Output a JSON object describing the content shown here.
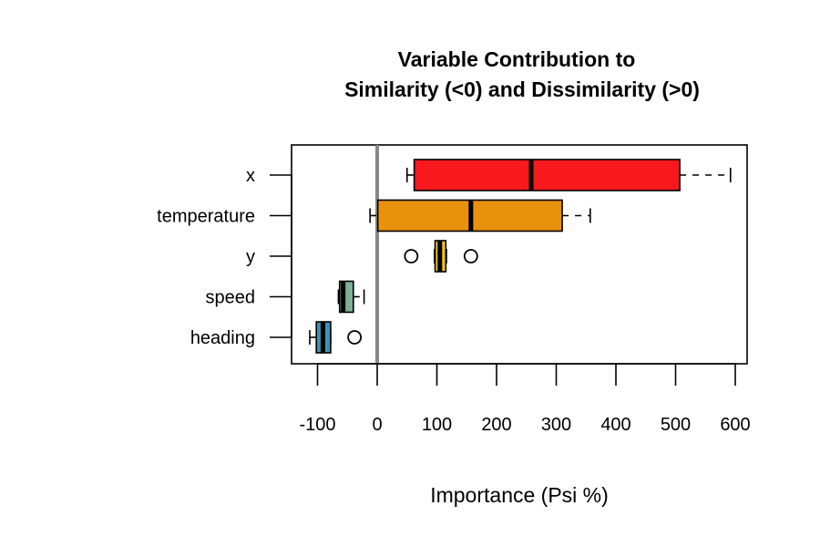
{
  "chart_data": {
    "type": "boxplot",
    "orientation": "horizontal",
    "title_line1": "Variable Contribution to",
    "title_line2": "Similarity (<0) and Dissimilarity (>0)",
    "xlabel": "Importance (Psi %)",
    "ylabel": "",
    "xlim": [
      -125,
      620
    ],
    "xticks": [
      -100,
      0,
      100,
      200,
      300,
      400,
      500,
      600
    ],
    "xtick_labels": [
      "-100",
      "0",
      "100",
      "200",
      "300",
      "400",
      "500",
      "600"
    ],
    "reference_line": 0,
    "reference_line_color": "#888888",
    "grid": false,
    "categories": [
      "x",
      "temperature",
      "y",
      "speed",
      "heading"
    ],
    "boxes": [
      {
        "label": "x",
        "whisker_low": 50,
        "q1": 62,
        "median": 258,
        "q3": 507,
        "whisker_high": 592,
        "outliers": [],
        "color": "#f8191e"
      },
      {
        "label": "temperature",
        "whisker_low": -12,
        "q1": 1,
        "median": 157,
        "q3": 310,
        "whisker_high": 357,
        "outliers": [],
        "color": "#e8910d"
      },
      {
        "label": "y",
        "whisker_low": 96,
        "q1": 97,
        "median": 105,
        "q3": 115,
        "whisker_high": 116,
        "outliers": [
          57,
          157
        ],
        "color": "#f0c419"
      },
      {
        "label": "speed",
        "whisker_low": -65,
        "q1": -63,
        "median": -57,
        "q3": -40,
        "whisker_high": -22,
        "outliers": [],
        "color": "#7eaf97"
      },
      {
        "label": "heading",
        "whisker_low": -113,
        "q1": -102,
        "median": -91,
        "q3": -78,
        "whisker_high": -78,
        "outliers": [
          -38
        ],
        "color": "#3a94b7"
      }
    ]
  }
}
